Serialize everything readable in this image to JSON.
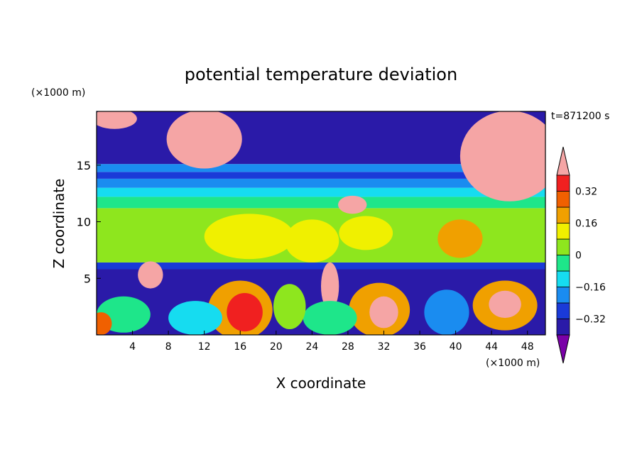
{
  "chart_data": {
    "type": "heatmap",
    "title": "potential temperature deviation",
    "xlabel": "X coordinate",
    "ylabel": "Z coordinate",
    "x_unit": "(×1000 m)",
    "y_unit": "(×1000 m)",
    "time_label": "t=871200 s",
    "xlim": [
      0,
      50
    ],
    "ylim": [
      0,
      19.75
    ],
    "x_ticks": [
      4,
      8,
      12,
      16,
      20,
      24,
      28,
      32,
      36,
      40,
      44,
      48
    ],
    "x_tick_labels": [
      "4",
      "8",
      "12",
      "16",
      "20",
      "24",
      "28",
      "32",
      "36",
      "40",
      "44",
      "48"
    ],
    "y_ticks": [
      5,
      10,
      15
    ],
    "y_tick_labels": [
      "5",
      "10",
      "15"
    ],
    "colorbar": {
      "levels": [
        -0.4,
        -0.32,
        -0.24,
        -0.16,
        -0.08,
        0,
        0.08,
        0.16,
        0.24,
        0.32,
        0.4
      ],
      "tick_values": [
        0.32,
        0.16,
        0,
        -0.16,
        -0.32
      ],
      "tick_labels": [
        "0.32",
        "0.16",
        "0",
        "−0.16",
        "−0.32"
      ],
      "colors": [
        "#7a00a8",
        "#2a1aa8",
        "#1a3ad8",
        "#1a8cf0",
        "#16dcf0",
        "#1ee68a",
        "#8ee61e",
        "#f0f000",
        "#f0a000",
        "#f06000",
        "#f02020",
        "#f5a5a5"
      ],
      "extend": "both"
    },
    "bands": [
      {
        "z0": 0,
        "z1": 5.8,
        "v": -0.36
      },
      {
        "z0": 5.8,
        "z1": 6.4,
        "v": -0.28
      },
      {
        "z0": 6.4,
        "z1": 11.2,
        "v": 0.02
      },
      {
        "z0": 11.2,
        "z1": 12.2,
        "v": -0.05
      },
      {
        "z0": 12.2,
        "z1": 13.0,
        "v": -0.14
      },
      {
        "z0": 13.0,
        "z1": 13.8,
        "v": -0.22
      },
      {
        "z0": 13.8,
        "z1": 14.4,
        "v": -0.3
      },
      {
        "z0": 14.4,
        "z1": 15.1,
        "v": -0.2
      },
      {
        "z0": 15.1,
        "z1": 19.75,
        "v": -0.36
      }
    ],
    "features": [
      {
        "x": 12,
        "z": 17.3,
        "rx": 4.2,
        "rz": 2.6,
        "v": 0.45
      },
      {
        "x": 46,
        "z": 15.8,
        "rx": 5.5,
        "rz": 4.0,
        "v": 0.45
      },
      {
        "x": 2,
        "z": 19.1,
        "rx": 2.5,
        "rz": 0.9,
        "v": 0.45
      },
      {
        "x": 28.5,
        "z": 11.5,
        "rx": 1.6,
        "rz": 0.8,
        "v": 0.45
      },
      {
        "x": 6,
        "z": 5.3,
        "rx": 1.4,
        "rz": 1.2,
        "v": 0.45
      },
      {
        "x": 26,
        "z": 4.3,
        "rx": 1.0,
        "rz": 2.1,
        "v": 0.45
      },
      {
        "x": 17,
        "z": 8.7,
        "rx": 5.0,
        "rz": 2.0,
        "v": 0.1
      },
      {
        "x": 24,
        "z": 8.3,
        "rx": 3.0,
        "rz": 1.9,
        "v": 0.14
      },
      {
        "x": 40.5,
        "z": 8.5,
        "rx": 2.5,
        "rz": 1.7,
        "v": 0.17
      },
      {
        "x": 30,
        "z": 9.0,
        "rx": 3.0,
        "rz": 1.5,
        "v": 0.09
      },
      {
        "x": 16,
        "z": 2.2,
        "rx": 3.6,
        "rz": 2.6,
        "v": 0.18
      },
      {
        "x": 16.5,
        "z": 2.0,
        "rx": 2.0,
        "rz": 1.7,
        "v": 0.34
      },
      {
        "x": 31.5,
        "z": 2.2,
        "rx": 3.4,
        "rz": 2.4,
        "v": 0.2
      },
      {
        "x": 32,
        "z": 2.0,
        "rx": 1.6,
        "rz": 1.4,
        "v": 0.42
      },
      {
        "x": 45.5,
        "z": 2.6,
        "rx": 3.6,
        "rz": 2.2,
        "v": 0.22
      },
      {
        "x": 45.5,
        "z": 2.7,
        "rx": 1.8,
        "rz": 1.2,
        "v": 0.42
      },
      {
        "x": 11,
        "z": 1.5,
        "rx": 3.0,
        "rz": 1.5,
        "v": -0.1
      },
      {
        "x": 3,
        "z": 1.8,
        "rx": 3.0,
        "rz": 1.6,
        "v": -0.06
      },
      {
        "x": 26,
        "z": 1.5,
        "rx": 3.0,
        "rz": 1.5,
        "v": -0.08
      },
      {
        "x": 39,
        "z": 2.0,
        "rx": 2.5,
        "rz": 2.0,
        "v": -0.2
      },
      {
        "x": 0.5,
        "z": 1.0,
        "rx": 1.2,
        "rz": 1.0,
        "v": 0.3
      },
      {
        "x": 21.5,
        "z": 2.5,
        "rx": 1.8,
        "rz": 2.0,
        "v": 0.0
      }
    ]
  }
}
